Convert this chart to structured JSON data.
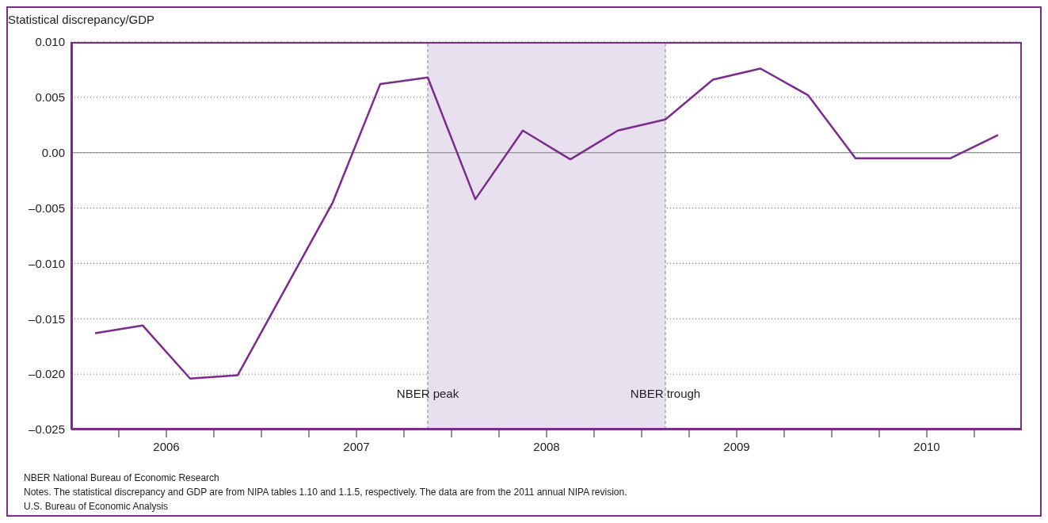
{
  "chart_data": {
    "type": "line",
    "ylabel": "Statistical discrepancy/GDP",
    "x": [
      2006.125,
      2006.375,
      2006.625,
      2006.875,
      2007.125,
      2007.375,
      2007.625,
      2007.875,
      2008.125,
      2008.375,
      2008.625,
      2008.875,
      2009.125,
      2009.375,
      2009.625,
      2009.875,
      2010.125,
      2010.375,
      2010.625,
      2010.875
    ],
    "series": [
      {
        "color": "#7b2a8e",
        "values": [
          -0.0163,
          -0.0156,
          -0.0204,
          -0.0201,
          -0.0123,
          -0.0045,
          0.0062,
          0.0068,
          -0.0042,
          0.002,
          -0.0006,
          0.002,
          0.003,
          0.0066,
          0.0076,
          0.0052,
          -0.0005,
          -0.0005,
          -0.0005,
          0.0016
        ]
      }
    ],
    "xlim": [
      2006,
      2011
    ],
    "xticks": [
      {
        "value": 2006.25,
        "label": null
      },
      {
        "value": 2006.5,
        "label": "2006"
      },
      {
        "value": 2006.75,
        "label": null
      },
      {
        "value": 2007,
        "label": null
      },
      {
        "value": 2007.25,
        "label": null
      },
      {
        "value": 2007.5,
        "label": "2007"
      },
      {
        "value": 2007.75,
        "label": null
      },
      {
        "value": 2008,
        "label": null
      },
      {
        "value": 2008.25,
        "label": null
      },
      {
        "value": 2008.5,
        "label": "2008"
      },
      {
        "value": 2008.75,
        "label": null
      },
      {
        "value": 2009,
        "label": null
      },
      {
        "value": 2009.25,
        "label": null
      },
      {
        "value": 2009.5,
        "label": "2009"
      },
      {
        "value": 2009.75,
        "label": null
      },
      {
        "value": 2010,
        "label": null
      },
      {
        "value": 2010.25,
        "label": null
      },
      {
        "value": 2010.5,
        "label": "2010"
      },
      {
        "value": 2010.75,
        "label": null
      }
    ],
    "ylim": [
      -0.025,
      0.01
    ],
    "yticks": [
      {
        "value": -0.025,
        "label": "–0.025"
      },
      {
        "value": -0.02,
        "label": "–0.020"
      },
      {
        "value": -0.015,
        "label": "–0.015"
      },
      {
        "value": -0.01,
        "label": "–0.010"
      },
      {
        "value": -0.005,
        "label": "–0.005"
      },
      {
        "value": 0,
        "label": "0.00"
      },
      {
        "value": 0.005,
        "label": "0.005"
      },
      {
        "value": 0.01,
        "label": "0.010"
      }
    ],
    "grid": "y",
    "marker": "none",
    "line_style": "solid",
    "legend": false,
    "ref_lines": [
      {
        "axis": "y",
        "value": 0,
        "label": null,
        "color": "#808080",
        "line_style": "solid"
      },
      {
        "axis": "x",
        "value": 2007.875,
        "label": "NBER peak",
        "color": "#808080",
        "line_style": "dashed"
      },
      {
        "axis": "x",
        "value": 2009.125,
        "label": "NBER trough",
        "color": "#808080",
        "line_style": "dashed"
      }
    ],
    "bands": [
      {
        "axis": "x",
        "from": 2007.875,
        "to": 2009.125,
        "label": null,
        "color": "#e8e0ee"
      }
    ],
    "annotations": [
      "NBER National Bureau of Economic Research",
      "Notes. The statistical discrepancy and GDP are from NIPA tables 1.10 and 1.1.5, respectively.  The data are from the 2011 annual NIPA revision.",
      "U.S. Bureau of Economic Analysis"
    ]
  }
}
